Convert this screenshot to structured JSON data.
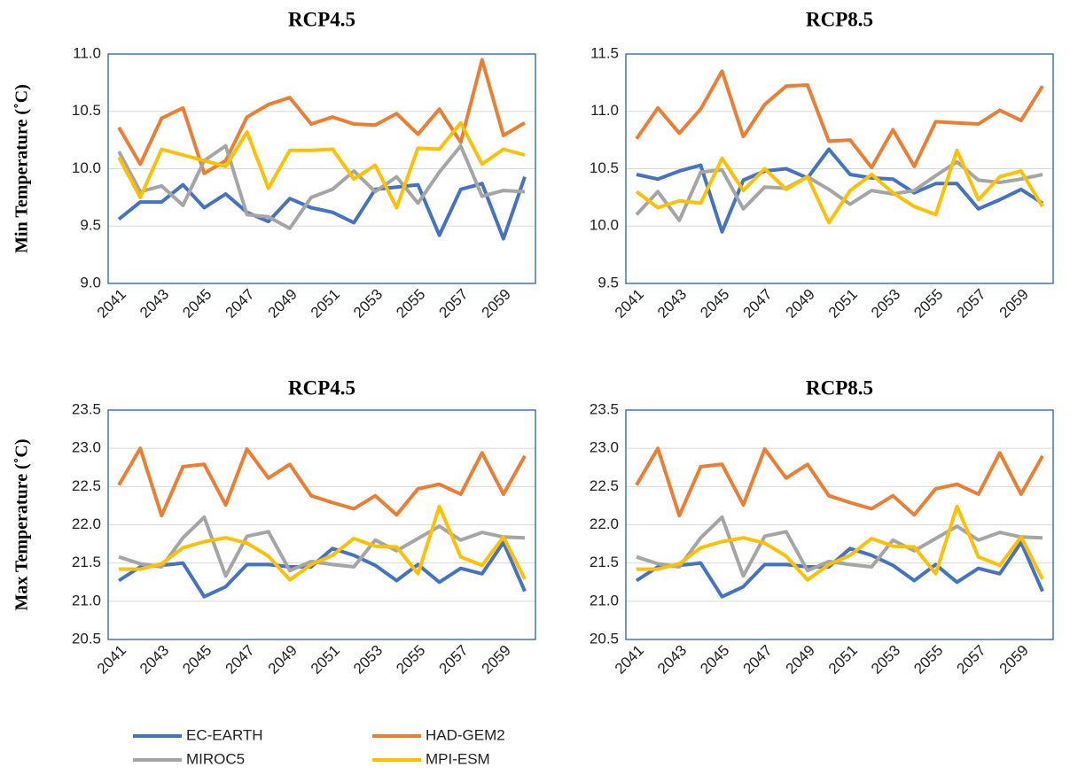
{
  "chart_data": [
    {
      "type": "line",
      "title": "RCP4.5",
      "y_label": "Min Temperature (˚C)",
      "categories": [
        "2041",
        null,
        "2043",
        null,
        "2045",
        null,
        "2047",
        null,
        "2049",
        null,
        "2051",
        null,
        "2053",
        null,
        "2055",
        null,
        "2057",
        null,
        "2059",
        null
      ],
      "ylim": [
        9.0,
        11.0
      ],
      "yticks": [
        {
          "value": 9.0,
          "label": "9.0"
        },
        9.5,
        {
          "value": 10.0,
          "label": "10.0"
        },
        10.5,
        {
          "value": 11.0,
          "label": "11.0"
        }
      ],
      "grid": true,
      "series": [
        {
          "name": "EC-EARTH",
          "color": "#4472c4",
          "values": [
            9.56,
            9.71,
            9.71,
            9.86,
            9.66,
            9.78,
            9.62,
            9.54,
            9.74,
            9.66,
            9.62,
            9.53,
            9.82,
            9.84,
            9.86,
            9.42,
            9.82,
            9.87,
            9.39,
            9.93
          ]
        },
        {
          "name": "HAD-GEM2",
          "color": "#ed7d31",
          "values": [
            10.36,
            10.04,
            10.44,
            10.53,
            9.96,
            10.07,
            10.45,
            10.56,
            10.62,
            10.39,
            10.45,
            10.39,
            10.38,
            10.48,
            10.3,
            10.52,
            10.23,
            10.95,
            10.29,
            10.4
          ]
        },
        {
          "name": "MIROC5",
          "color": "#a5a5a5",
          "values": [
            10.15,
            9.8,
            9.85,
            9.68,
            10.07,
            10.2,
            9.6,
            9.58,
            9.48,
            9.75,
            9.82,
            9.98,
            9.8,
            9.93,
            9.7,
            9.97,
            10.2,
            9.76,
            9.81,
            9.8
          ]
        },
        {
          "name": "MPI-ESM",
          "color": "#ffc000",
          "values": [
            10.1,
            9.75,
            10.17,
            10.12,
            10.07,
            10.02,
            10.32,
            9.83,
            10.16,
            10.16,
            10.17,
            9.91,
            10.03,
            9.66,
            10.18,
            10.17,
            10.4,
            10.04,
            10.17,
            10.12
          ]
        }
      ]
    },
    {
      "type": "line",
      "title": "RCP8.5",
      "categories": [
        "2041",
        null,
        "2043",
        null,
        "2045",
        null,
        "2047",
        null,
        "2049",
        null,
        "2051",
        null,
        "2053",
        null,
        "2055",
        null,
        "2057",
        null,
        "2059",
        null
      ],
      "ylim": [
        9.5,
        11.5
      ],
      "yticks": [
        9.5,
        {
          "value": 10.0,
          "label": "10.0"
        },
        10.5,
        {
          "value": 11.0,
          "label": "11.0"
        },
        11.5
      ],
      "grid": true,
      "series": [
        {
          "name": "EC-EARTH",
          "color": "#4472c4",
          "values": [
            10.45,
            10.41,
            10.48,
            10.53,
            9.95,
            10.4,
            10.48,
            10.5,
            10.42,
            10.67,
            10.45,
            10.42,
            10.41,
            10.29,
            10.37,
            10.37,
            10.15,
            10.23,
            10.32,
            10.2
          ]
        },
        {
          "name": "HAD-GEM2",
          "color": "#ed7d31",
          "values": [
            10.76,
            11.03,
            10.81,
            11.02,
            11.35,
            10.78,
            11.06,
            11.22,
            11.23,
            10.74,
            10.75,
            10.51,
            10.84,
            10.52,
            10.91,
            10.9,
            10.89,
            11.01,
            10.92,
            11.22
          ]
        },
        {
          "name": "MIROC5",
          "color": "#a5a5a5",
          "values": [
            10.1,
            10.3,
            10.05,
            10.47,
            10.49,
            10.15,
            10.34,
            10.33,
            10.43,
            10.32,
            10.19,
            10.31,
            10.28,
            10.31,
            10.44,
            10.56,
            10.4,
            10.38,
            10.41,
            10.45
          ]
        },
        {
          "name": "MPI-ESM",
          "color": "#ffc000",
          "values": [
            10.3,
            10.16,
            10.22,
            10.2,
            10.59,
            10.31,
            10.5,
            10.32,
            10.43,
            10.03,
            10.31,
            10.45,
            10.29,
            10.17,
            10.1,
            10.66,
            10.23,
            10.43,
            10.48,
            10.17
          ]
        }
      ]
    },
    {
      "type": "line",
      "title": "RCP4.5",
      "y_label": "Max Temperature (˚C)",
      "categories": [
        "2041",
        null,
        "2043",
        null,
        "2045",
        null,
        "2047",
        null,
        "2049",
        null,
        "2051",
        null,
        "2053",
        null,
        "2055",
        null,
        "2057",
        null,
        "2059",
        null
      ],
      "ylim": [
        20.5,
        23.5
      ],
      "yticks": [
        20.5,
        {
          "value": 21.0,
          "label": "21.0"
        },
        21.5,
        {
          "value": 22.0,
          "label": "22.0"
        },
        22.5,
        {
          "value": 23.0,
          "label": "23.0"
        },
        23.5
      ],
      "grid": true,
      "series": [
        {
          "name": "EC-EARTH",
          "color": "#4472c4",
          "values": [
            21.27,
            21.45,
            21.47,
            21.5,
            21.06,
            21.19,
            21.48,
            21.48,
            21.45,
            21.45,
            21.69,
            21.6,
            21.47,
            21.27,
            21.48,
            21.25,
            21.43,
            21.36,
            21.77,
            21.13
          ]
        },
        {
          "name": "HAD-GEM2",
          "color": "#ed7d31",
          "values": [
            22.52,
            23.0,
            22.12,
            22.76,
            22.79,
            22.26,
            22.99,
            22.61,
            22.79,
            22.38,
            22.29,
            22.21,
            22.38,
            22.13,
            22.47,
            22.53,
            22.4,
            22.94,
            22.4,
            22.9
          ]
        },
        {
          "name": "MIROC5",
          "color": "#a5a5a5",
          "values": [
            21.58,
            21.49,
            21.45,
            21.83,
            22.1,
            21.33,
            21.85,
            21.91,
            21.4,
            21.52,
            21.48,
            21.45,
            21.8,
            21.66,
            21.82,
            21.98,
            21.8,
            21.9,
            21.84,
            21.83
          ]
        },
        {
          "name": "MPI-ESM",
          "color": "#ffc000",
          "values": [
            21.42,
            21.42,
            21.49,
            21.7,
            21.78,
            21.83,
            21.76,
            21.59,
            21.28,
            21.48,
            21.6,
            21.82,
            21.72,
            21.71,
            21.36,
            22.24,
            21.58,
            21.47,
            21.84,
            21.29
          ]
        }
      ]
    },
    {
      "type": "line",
      "title": "RCP8.5",
      "categories": [
        "2041",
        null,
        "2043",
        null,
        "2045",
        null,
        "2047",
        null,
        "2049",
        null,
        "2051",
        null,
        "2053",
        null,
        "2055",
        null,
        "2057",
        null,
        "2059",
        null
      ],
      "ylim": [
        20.5,
        23.5
      ],
      "yticks": [
        20.5,
        {
          "value": 21.0,
          "label": "21.0"
        },
        21.5,
        {
          "value": 22.0,
          "label": "22.0"
        },
        22.5,
        {
          "value": 23.0,
          "label": "23.0"
        },
        23.5
      ],
      "grid": true,
      "series": [
        {
          "name": "EC-EARTH",
          "color": "#4472c4",
          "values": [
            21.27,
            21.45,
            21.47,
            21.5,
            21.06,
            21.19,
            21.48,
            21.48,
            21.45,
            21.45,
            21.69,
            21.6,
            21.47,
            21.27,
            21.48,
            21.25,
            21.43,
            21.36,
            21.77,
            21.13
          ]
        },
        {
          "name": "HAD-GEM2",
          "color": "#ed7d31",
          "values": [
            22.52,
            23.0,
            22.12,
            22.76,
            22.79,
            22.26,
            22.99,
            22.61,
            22.79,
            22.38,
            22.29,
            22.21,
            22.38,
            22.13,
            22.47,
            22.53,
            22.4,
            22.94,
            22.4,
            22.9
          ]
        },
        {
          "name": "MIROC5",
          "color": "#a5a5a5",
          "values": [
            21.58,
            21.49,
            21.45,
            21.83,
            22.1,
            21.33,
            21.85,
            21.91,
            21.4,
            21.52,
            21.48,
            21.45,
            21.8,
            21.66,
            21.82,
            21.98,
            21.8,
            21.9,
            21.84,
            21.83
          ]
        },
        {
          "name": "MPI-ESM",
          "color": "#ffc000",
          "values": [
            21.42,
            21.42,
            21.49,
            21.7,
            21.78,
            21.83,
            21.76,
            21.59,
            21.28,
            21.48,
            21.6,
            21.82,
            21.72,
            21.71,
            21.36,
            22.24,
            21.58,
            21.47,
            21.84,
            21.29
          ]
        }
      ]
    }
  ]
}
